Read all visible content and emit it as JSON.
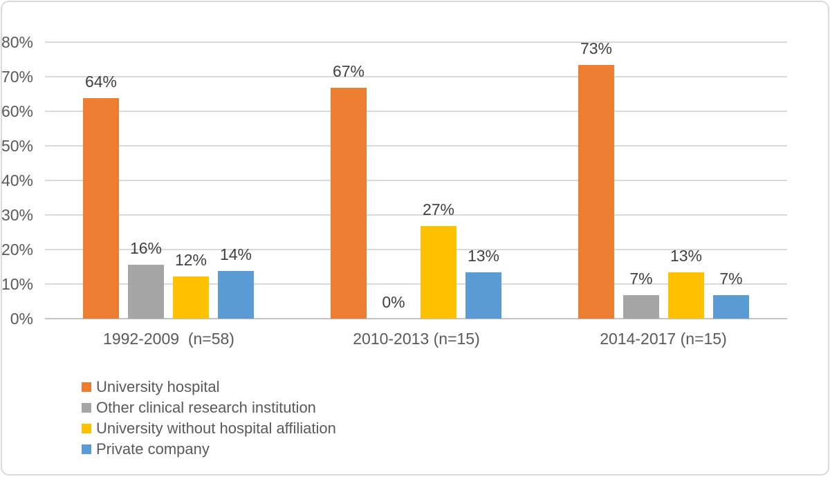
{
  "chart_data": {
    "type": "bar",
    "title": "",
    "categories": [
      "1992-2009  (n=58)",
      "2010-2013 (n=15)",
      "2014-2017 (n=15)"
    ],
    "series": [
      {
        "name": "University hospital",
        "color": "#ED7D31",
        "values": [
          63.8,
          66.7,
          73.3
        ],
        "labels": [
          "64%",
          "67%",
          "73%"
        ]
      },
      {
        "name": "Other clinical research institution",
        "color": "#A5A5A5",
        "values": [
          15.5,
          0,
          6.7
        ],
        "labels": [
          "16%",
          "0%",
          "7%"
        ]
      },
      {
        "name": "University without hospital affiliation",
        "color": "#FFC000",
        "values": [
          12.1,
          26.7,
          13.3
        ],
        "labels": [
          "12%",
          "27%",
          "13%"
        ]
      },
      {
        "name": "Private company",
        "color": "#5B9BD5",
        "values": [
          13.8,
          13.3,
          6.7
        ],
        "labels": [
          "14%",
          "13%",
          "7%"
        ]
      }
    ],
    "y_axis": {
      "ticks": [
        "0%",
        "10%",
        "20%",
        "30%",
        "40%",
        "50%",
        "60%",
        "70%",
        "80%"
      ],
      "min": 0,
      "max": 80,
      "step": 10
    },
    "grid": true,
    "legend_position": "bottom-left",
    "colors": {
      "grid": "#D9D9D9",
      "axis_line": "#C3C3C3",
      "tick_text": "#595959",
      "category_text": "#595959",
      "data_label_text": "#404040",
      "frame_border": "#D9D9D9",
      "background": "#FFFFFF"
    }
  }
}
